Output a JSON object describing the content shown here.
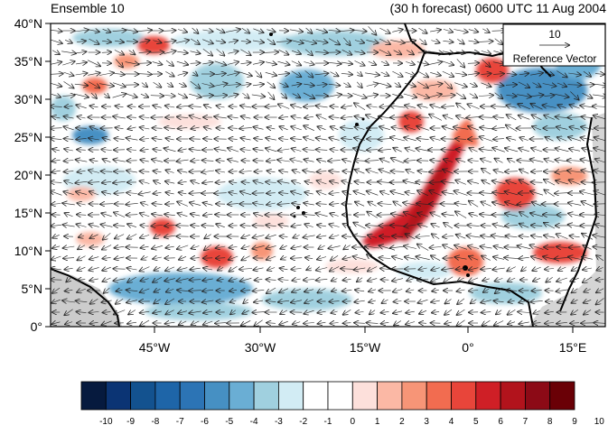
{
  "header": {
    "left": "Ensemble 10",
    "right": "(30 h forecast) 0600 UTC 11 Aug 2004"
  },
  "map": {
    "lat_labels": [
      "40°N",
      "35°N",
      "30°N",
      "25°N",
      "20°N",
      "15°N",
      "10°N",
      "5°N",
      "0°"
    ],
    "lon_labels": [
      "45°W",
      "30°W",
      "15°W",
      "0°",
      "15°E"
    ]
  },
  "reference_vector": {
    "value": "10",
    "label": "Reference Vector"
  },
  "colorbar": {
    "labels": [
      "-10",
      "-9",
      "-8",
      "-7",
      "-6",
      "-5",
      "-4",
      "-3",
      "-2",
      "-1",
      "0",
      "1",
      "2",
      "3",
      "4",
      "5",
      "6",
      "7",
      "8",
      "9",
      "10"
    ],
    "colors": [
      "#061a3e",
      "#0b3474",
      "#13528f",
      "#1e65a8",
      "#2c74b5",
      "#4690c3",
      "#6aaed4",
      "#a0d0df",
      "#d2ecf4",
      "#ffffff",
      "#ffffff",
      "#fde0db",
      "#fbb8a5",
      "#f79577",
      "#f26c50",
      "#e8453a",
      "#cf1f26",
      "#b2131c",
      "#8c0a16",
      "#6a0006"
    ]
  }
}
